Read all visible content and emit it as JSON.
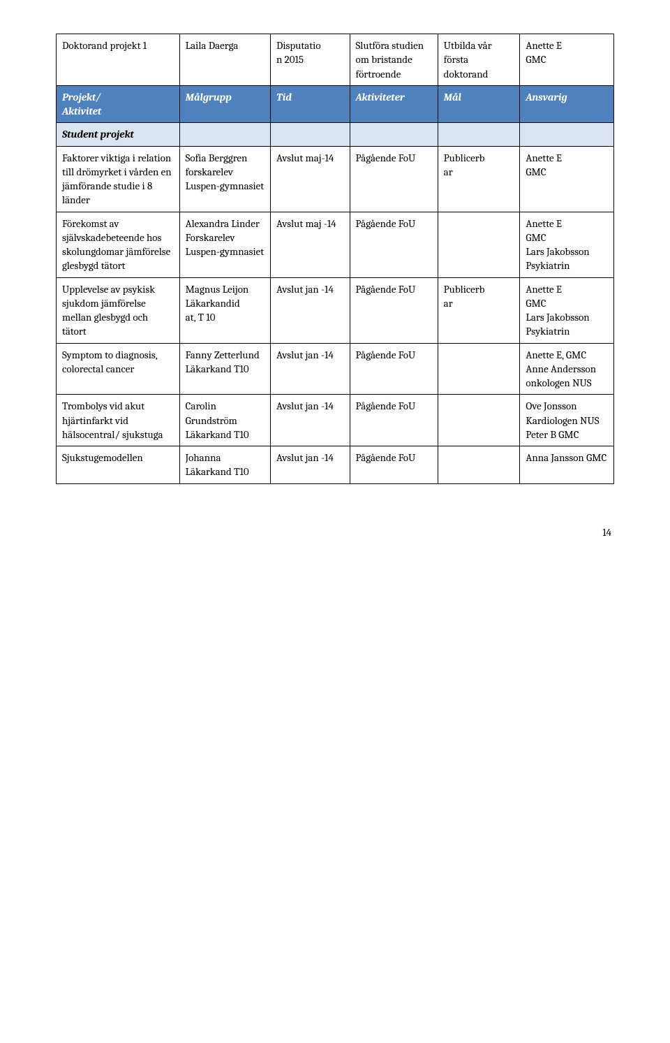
{
  "colors": {
    "header_bg": "#4f81bd",
    "header_text": "#ffffff",
    "section_bg": "#dbe5f1",
    "border": "#000000",
    "page_bg": "#ffffff",
    "text": "#000000"
  },
  "typography": {
    "font_family": "Cambria, Georgia, serif",
    "cell_fontsize_pt": 11,
    "header_bold": true,
    "header_italic": true
  },
  "page_number": "14",
  "columns": [
    {
      "key": "c1",
      "width_pct": 21
    },
    {
      "key": "c2",
      "width_pct": 15.5
    },
    {
      "key": "c3",
      "width_pct": 13.5
    },
    {
      "key": "c4",
      "width_pct": 15
    },
    {
      "key": "c5",
      "width_pct": 14
    },
    {
      "key": "c6",
      "width_pct": 16
    }
  ],
  "rows": [
    {
      "type": "data",
      "cells": [
        "Doktorand projekt 1",
        "Laila Daerga",
        "Disputatio\nn 2015",
        "Slutföra studien om bristande förtroende",
        "Utbilda vår första doktorand",
        "Anette E\nGMC"
      ]
    },
    {
      "type": "header",
      "cells": [
        "Projekt/\nAktivitet",
        "Målgrupp",
        "Tid",
        "Aktiviteter",
        "Mål",
        "Ansvarig"
      ]
    },
    {
      "type": "section",
      "cells": [
        "Student projekt",
        "",
        "",
        "",
        "",
        ""
      ]
    },
    {
      "type": "data",
      "cells": [
        "Faktorer viktiga i relation till drömyrket i vården en jämförande studie i 8 länder",
        "Sofia Berggren forskarelev Luspen-gymnasiet",
        "Avslut maj-14",
        "Pågående FoU",
        "Publicerb\nar",
        "Anette E\nGMC"
      ]
    },
    {
      "type": "data",
      "cells": [
        "Förekomst av självskadebeteende hos skolungdomar jämförelse glesbygd tätort",
        "Alexandra Linder Forskarelev Luspen-gymnasiet",
        "Avslut maj -14",
        "Pågående FoU",
        "",
        "Anette E\nGMC\nLars Jakobsson Psykiatrin"
      ]
    },
    {
      "type": "data",
      "cells": [
        "Upplevelse av psykisk sjukdom jämförelse mellan glesbygd och tätort",
        "Magnus Leijon Läkarkandid\nat, T 10",
        "Avslut jan -14",
        "Pågående FoU",
        "Publicerb\nar",
        "Anette E\nGMC\nLars Jakobsson Psykiatrin"
      ]
    },
    {
      "type": "data",
      "cells": [
        "Symptom to diagnosis, colorectal cancer",
        "Fanny Zetterlund Läkarkand T10",
        "Avslut jan -14",
        "Pågående FoU",
        "",
        "Anette E, GMC\nAnne Andersson onkologen NUS"
      ]
    },
    {
      "type": "data",
      "cells": [
        "Trombolys vid akut hjärtinfarkt vid hälsocentral/ sjukstuga",
        "Carolin Grundström Läkarkand T10",
        "Avslut jan -14",
        "Pågående FoU",
        "",
        "Ove Jonsson Kardiologen NUS\nPeter B GMC"
      ]
    },
    {
      "type": "data",
      "cells": [
        "Sjukstugemodellen",
        "Johanna Läkarkand T10",
        "Avslut jan -14",
        "Pågående FoU",
        "",
        "Anna Jansson GMC"
      ]
    }
  ]
}
